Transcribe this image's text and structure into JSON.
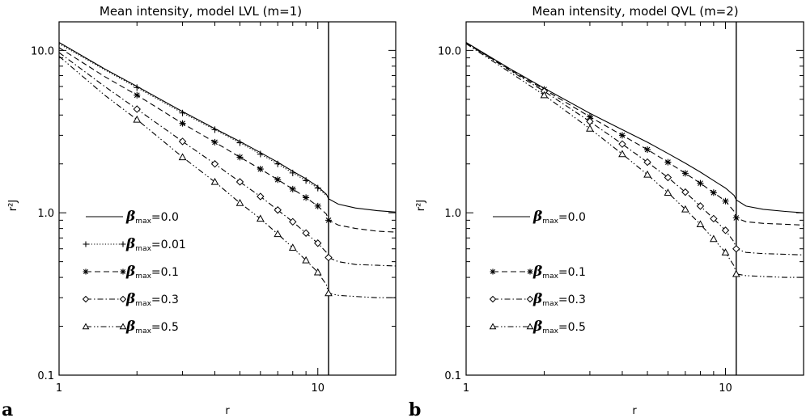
{
  "chart_data": [
    {
      "type": "line",
      "panel_letter": "a",
      "title": "Mean intensity, model LVL (m=1)",
      "xlabel": "r",
      "ylabel": "r²J",
      "xscale": "log",
      "yscale": "log",
      "xlim": [
        1,
        20
      ],
      "ylim": [
        0.1,
        15
      ],
      "x_ticks": [
        1,
        10
      ],
      "x_tick_labels": [
        "1",
        "10"
      ],
      "y_ticks": [
        0.1,
        1.0,
        10.0
      ],
      "y_tick_labels": [
        "0.1",
        "1.0",
        "10.0"
      ],
      "vline_x": 11,
      "legend_placement": "lower-left",
      "series": [
        {
          "label": "β_max=0.0",
          "beta_text": "β",
          "sub": "max",
          "value_text": "=0.0",
          "style": "solid",
          "marker": "none",
          "x": [
            1,
            1.5,
            2,
            3,
            4,
            5,
            6,
            7,
            8,
            9,
            10,
            10.8,
            11,
            12,
            14,
            17,
            20
          ],
          "y": [
            11.2,
            7.7,
            6.0,
            4.2,
            3.3,
            2.75,
            2.35,
            2.05,
            1.8,
            1.62,
            1.45,
            1.3,
            1.22,
            1.13,
            1.07,
            1.03,
            1.01
          ]
        },
        {
          "label": "β_max=0.01",
          "beta_text": "β",
          "sub": "max",
          "value_text": "=0.01",
          "style": "dotted",
          "marker": "plus",
          "x": [
            1,
            1.5,
            2,
            3,
            4,
            5,
            6,
            7,
            8,
            9,
            10,
            10.8
          ],
          "y": [
            11.0,
            7.6,
            5.9,
            4.12,
            3.25,
            2.7,
            2.3,
            2.0,
            1.76,
            1.58,
            1.42,
            1.28
          ],
          "marker_x": [
            2,
            3,
            4,
            5,
            6,
            7,
            8,
            9,
            10
          ],
          "marker_y": [
            5.9,
            4.12,
            3.25,
            2.7,
            2.3,
            2.0,
            1.76,
            1.58,
            1.42
          ]
        },
        {
          "label": "β_max=0.1",
          "beta_text": "β",
          "sub": "max",
          "value_text": "=0.1",
          "style": "dashed",
          "marker": "asterisk",
          "x": [
            1,
            1.5,
            2,
            3,
            4,
            5,
            6,
            7,
            8,
            9,
            10,
            10.8,
            11,
            12,
            14,
            17,
            20
          ],
          "y": [
            10.4,
            6.9,
            5.3,
            3.55,
            2.72,
            2.2,
            1.86,
            1.6,
            1.4,
            1.24,
            1.1,
            0.98,
            0.9,
            0.84,
            0.8,
            0.77,
            0.76
          ],
          "marker_x": [
            2,
            3,
            4,
            5,
            6,
            7,
            8,
            9,
            10,
            11
          ],
          "marker_y": [
            5.3,
            3.55,
            2.72,
            2.2,
            1.86,
            1.6,
            1.4,
            1.24,
            1.1,
            0.9
          ]
        },
        {
          "label": "β_max=0.3",
          "beta_text": "β",
          "sub": "max",
          "value_text": "=0.3",
          "style": "dashdot",
          "marker": "diamond",
          "x": [
            1,
            1.5,
            2,
            3,
            4,
            5,
            6,
            7,
            8,
            9,
            10,
            10.8,
            11,
            12,
            14,
            17,
            20
          ],
          "y": [
            9.7,
            6.0,
            4.35,
            2.75,
            2.0,
            1.55,
            1.26,
            1.04,
            0.88,
            0.75,
            0.65,
            0.57,
            0.53,
            0.5,
            0.48,
            0.475,
            0.47
          ],
          "marker_x": [
            2,
            3,
            4,
            5,
            6,
            7,
            8,
            9,
            10,
            11
          ],
          "marker_y": [
            4.35,
            2.75,
            2.0,
            1.55,
            1.26,
            1.04,
            0.88,
            0.75,
            0.65,
            0.53
          ]
        },
        {
          "label": "β_max=0.5",
          "beta_text": "β",
          "sub": "max",
          "value_text": "=0.5",
          "style": "dashdotdot",
          "marker": "triangle",
          "x": [
            1,
            1.5,
            2,
            3,
            4,
            5,
            6,
            7,
            8,
            9,
            10,
            10.8,
            11,
            12,
            14,
            17,
            20
          ],
          "y": [
            9.2,
            5.3,
            3.75,
            2.2,
            1.55,
            1.15,
            0.92,
            0.74,
            0.61,
            0.51,
            0.43,
            0.36,
            0.32,
            0.31,
            0.305,
            0.3,
            0.3
          ],
          "marker_x": [
            2,
            3,
            4,
            5,
            6,
            7,
            8,
            9,
            10,
            11
          ],
          "marker_y": [
            3.75,
            2.2,
            1.55,
            1.15,
            0.92,
            0.74,
            0.61,
            0.51,
            0.43,
            0.32
          ]
        }
      ]
    },
    {
      "type": "line",
      "panel_letter": "b",
      "title": "Mean intensity, model QVL (m=2)",
      "xlabel": "r",
      "ylabel": "r²J",
      "xscale": "log",
      "yscale": "log",
      "xlim": [
        1,
        20
      ],
      "ylim": [
        0.1,
        15
      ],
      "x_ticks": [
        1,
        10
      ],
      "x_tick_labels": [
        "1",
        "10"
      ],
      "y_ticks": [
        0.1,
        1.0,
        10.0
      ],
      "y_tick_labels": [
        "0.1",
        "1.0",
        "10.0"
      ],
      "vline_x": 11,
      "legend_placement": "lower-left",
      "series": [
        {
          "label": "β_max=0.0",
          "beta_text": "β",
          "sub": "max",
          "value_text": "=0.0",
          "style": "solid",
          "marker": "none",
          "x": [
            1,
            1.5,
            2,
            3,
            4,
            5,
            6,
            7,
            8,
            9,
            10,
            10.8,
            11,
            12,
            14,
            17,
            20
          ],
          "y": [
            11.2,
            7.6,
            5.85,
            4.1,
            3.25,
            2.72,
            2.32,
            2.02,
            1.78,
            1.58,
            1.42,
            1.28,
            1.2,
            1.1,
            1.05,
            1.02,
            1.0
          ]
        },
        {
          "label": "β_max=0.1",
          "beta_text": "β",
          "sub": "max",
          "value_text": "=0.1",
          "style": "dashed",
          "marker": "asterisk",
          "x": [
            1,
            1.5,
            2,
            3,
            4,
            5,
            6,
            7,
            8,
            9,
            10,
            10.8,
            11,
            12,
            14,
            17,
            20
          ],
          "y": [
            11.1,
            7.5,
            5.75,
            3.9,
            3.0,
            2.45,
            2.05,
            1.75,
            1.52,
            1.33,
            1.18,
            1.02,
            0.93,
            0.88,
            0.86,
            0.85,
            0.84
          ],
          "marker_x": [
            2,
            3,
            4,
            5,
            6,
            7,
            8,
            9,
            10,
            11
          ],
          "marker_y": [
            5.75,
            3.9,
            3.0,
            2.45,
            2.05,
            1.75,
            1.52,
            1.33,
            1.18,
            0.93
          ]
        },
        {
          "label": "β_max=0.3",
          "beta_text": "β",
          "sub": "max",
          "value_text": "=0.3",
          "style": "dashdot",
          "marker": "diamond",
          "x": [
            1,
            1.5,
            2,
            3,
            4,
            5,
            6,
            7,
            8,
            9,
            10,
            10.8,
            11,
            12,
            14,
            17,
            20
          ],
          "y": [
            11.1,
            7.4,
            5.6,
            3.65,
            2.65,
            2.05,
            1.65,
            1.34,
            1.1,
            0.92,
            0.78,
            0.66,
            0.6,
            0.57,
            0.56,
            0.555,
            0.55
          ],
          "marker_x": [
            2,
            3,
            4,
            5,
            6,
            7,
            8,
            9,
            10,
            11
          ],
          "marker_y": [
            5.6,
            3.65,
            2.65,
            2.05,
            1.65,
            1.34,
            1.1,
            0.92,
            0.78,
            0.6
          ]
        },
        {
          "label": "β_max=0.5",
          "beta_text": "β",
          "sub": "max",
          "value_text": "=0.5",
          "style": "dashdotdot",
          "marker": "triangle",
          "x": [
            1,
            1.5,
            2,
            3,
            4,
            5,
            6,
            7,
            8,
            9,
            10,
            10.8,
            11,
            12,
            14,
            17,
            20
          ],
          "y": [
            11.0,
            7.2,
            5.3,
            3.3,
            2.3,
            1.72,
            1.33,
            1.05,
            0.85,
            0.69,
            0.57,
            0.47,
            0.42,
            0.41,
            0.405,
            0.4,
            0.4
          ],
          "marker_x": [
            2,
            3,
            4,
            5,
            6,
            7,
            8,
            9,
            10,
            11
          ],
          "marker_y": [
            5.3,
            3.3,
            2.3,
            1.72,
            1.33,
            1.05,
            0.85,
            0.69,
            0.57,
            0.42
          ]
        }
      ]
    }
  ]
}
